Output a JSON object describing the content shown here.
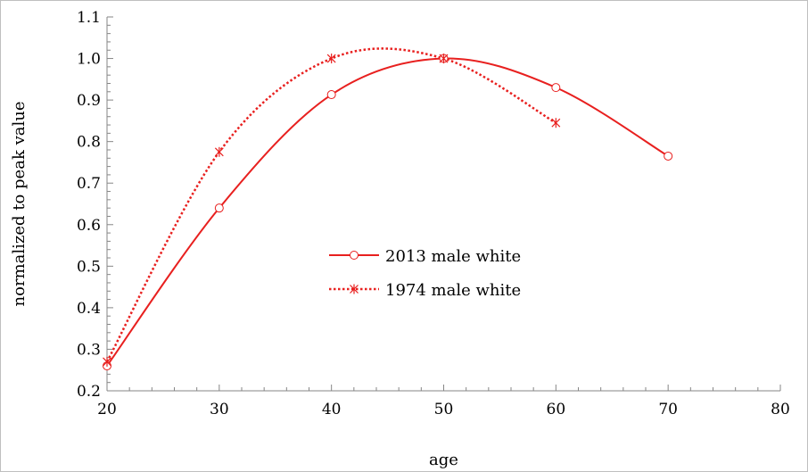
{
  "chart_data": {
    "type": "line",
    "title": "",
    "xlabel": "age",
    "ylabel": "normalized to peak value",
    "xlim": [
      20,
      80
    ],
    "ylim": [
      0.2,
      1.1
    ],
    "x_ticks": [
      20,
      30,
      40,
      50,
      60,
      70,
      80
    ],
    "y_ticks": [
      0.2,
      0.3,
      0.4,
      0.5,
      0.6,
      0.7,
      0.8,
      0.9,
      1.0,
      1.1
    ],
    "x_tick_labels": [
      "20",
      "30",
      "40",
      "50",
      "60",
      "70",
      "80"
    ],
    "y_tick_labels": [
      "0.2",
      "0.3",
      "0.4",
      "0.5",
      "0.6",
      "0.7",
      "0.8",
      "0.9",
      "1.0",
      "1.1"
    ],
    "grid": false,
    "legend_position": "center",
    "series": [
      {
        "name": "2013 male white",
        "color": "#e8201f",
        "line_style": "solid",
        "marker": "circle",
        "x": [
          20,
          30,
          40,
          50,
          60,
          70
        ],
        "y": [
          0.26,
          0.64,
          0.913,
          1.0,
          0.93,
          0.765
        ]
      },
      {
        "name": "1974 male white",
        "color": "#e8201f",
        "line_style": "dotted",
        "marker": "asterisk",
        "x": [
          20,
          30,
          40,
          50,
          60
        ],
        "y": [
          0.27,
          0.775,
          1.0,
          1.0,
          0.845
        ]
      }
    ]
  }
}
